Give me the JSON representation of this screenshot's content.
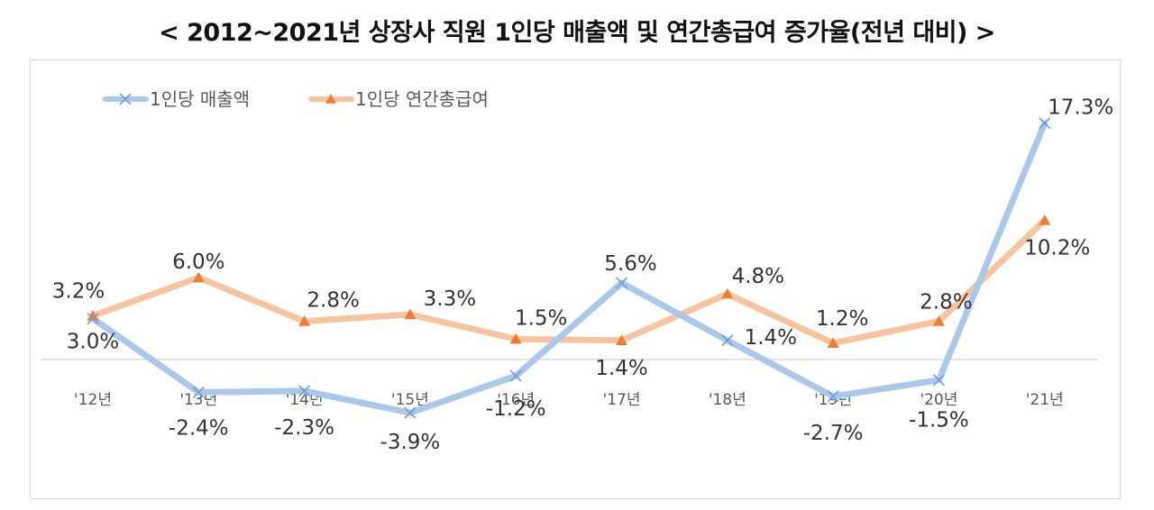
{
  "chart_data": {
    "type": "line",
    "title": "< 2012~2021년 상장사 직원 1인당 매출액 및 연간총급여 증가율(전년 대비) >",
    "categories": [
      "'12년",
      "'13년",
      "'14년",
      "'15년",
      "'16년",
      "'17년",
      "'18년",
      "'19년",
      "'20년",
      "'21년"
    ],
    "series": [
      {
        "name": "1인당 매출액",
        "color": "#a9c8ea",
        "marker": "x",
        "values": [
          3.0,
          -2.4,
          -2.3,
          -3.9,
          -1.2,
          5.6,
          1.4,
          -2.7,
          -1.5,
          17.3
        ],
        "labels": [
          "3.0%",
          "-2.4%",
          "-2.3%",
          "-3.9%",
          "-1.2%",
          "5.6%",
          "1.4%",
          "-2.7%",
          "-1.5%",
          "17.3%"
        ]
      },
      {
        "name": "1인당 연간총급여",
        "color": "#f7c4a0",
        "marker_color": "#ed7d31",
        "marker": "triangle",
        "values": [
          3.2,
          6.0,
          2.8,
          3.3,
          1.5,
          1.4,
          4.8,
          1.2,
          2.8,
          10.2
        ],
        "labels": [
          "3.2%",
          "6.0%",
          "2.8%",
          "3.3%",
          "1.5%",
          "1.4%",
          "4.8%",
          "1.2%",
          "2.8%",
          "10.2%"
        ]
      }
    ],
    "xlabel": "",
    "ylabel": "",
    "ylim": [
      -4,
      18
    ],
    "grid": false,
    "legend": "top-left"
  }
}
